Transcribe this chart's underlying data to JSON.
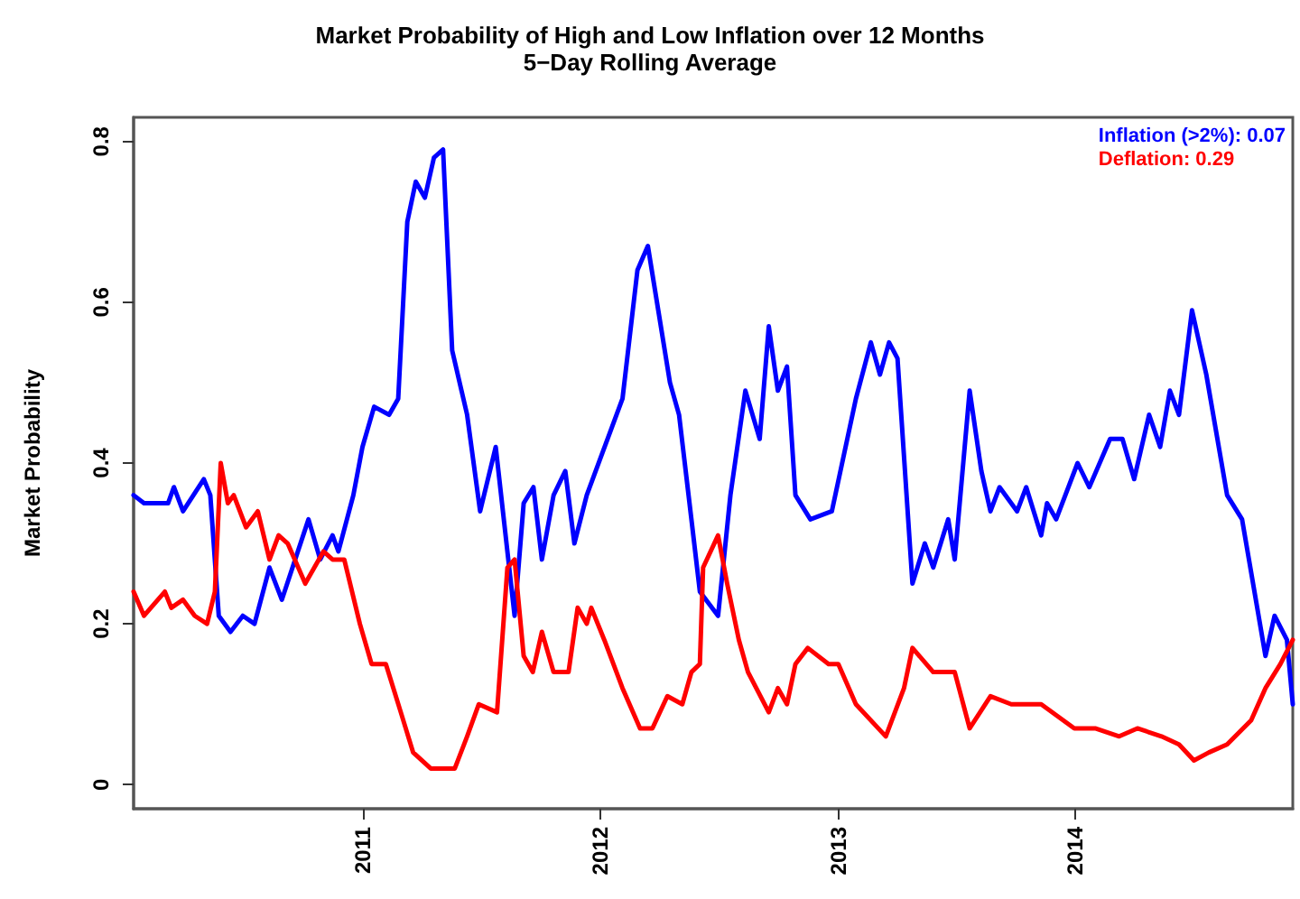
{
  "chart_data": {
    "type": "line",
    "title": "Market Probability of High and Low Inflation over 12 Months",
    "subtitle": "5−Day Rolling Average",
    "ylabel": "Market Probability",
    "xlim": [
      "2010-01-13",
      "2014-12-01"
    ],
    "xticks": [
      "2011",
      "2012",
      "2013",
      "2014"
    ],
    "ylim": [
      -0.03,
      0.83
    ],
    "yticks": [
      0,
      0.2,
      0.4,
      0.6,
      0.8
    ],
    "grid": false,
    "legend": "top right",
    "marker": "none",
    "line_style": "solid",
    "series": [
      {
        "name": "Inflation (>2%): 0.07",
        "color": "#0000ff",
        "x": [
          "2010-01-13",
          "2010-01-29",
          "2010-03-07",
          "2010-03-16",
          "2010-03-30",
          "2010-05-01",
          "2010-05-11",
          "2010-05-24",
          "2010-06-11",
          "2010-06-30",
          "2010-07-18",
          "2010-08-10",
          "2010-08-29",
          "2010-10-09",
          "2010-10-27",
          "2010-11-15",
          "2010-11-24",
          "2010-12-17",
          "2010-12-31",
          "2011-01-18",
          "2011-02-10",
          "2011-02-24",
          "2011-03-10",
          "2011-03-23",
          "2011-04-06",
          "2011-04-20",
          "2011-05-04",
          "2011-05-18",
          "2011-06-10",
          "2011-06-30",
          "2011-07-24",
          "2011-08-22",
          "2011-09-05",
          "2011-09-20",
          "2011-10-03",
          "2011-10-21",
          "2011-11-08",
          "2011-11-22",
          "2011-12-11",
          "2012-01-12",
          "2012-02-04",
          "2012-02-27",
          "2012-03-14",
          "2012-03-30",
          "2012-04-17",
          "2012-05-01",
          "2012-05-20",
          "2012-06-02",
          "2012-06-30",
          "2012-07-19",
          "2012-08-11",
          "2012-09-02",
          "2012-09-16",
          "2012-09-30",
          "2012-10-14",
          "2012-10-27",
          "2012-11-19",
          "2012-12-22",
          "2013-01-28",
          "2013-02-20",
          "2013-03-06",
          "2013-03-20",
          "2013-04-02",
          "2013-04-25",
          "2013-05-14",
          "2013-05-27",
          "2013-06-19",
          "2013-06-29",
          "2013-07-22",
          "2013-08-09",
          "2013-08-23",
          "2013-09-06",
          "2013-10-03",
          "2013-10-17",
          "2013-11-09",
          "2013-11-18",
          "2013-12-02",
          "2014-01-04",
          "2014-01-22",
          "2014-02-23",
          "2014-03-14",
          "2014-04-01",
          "2014-04-24",
          "2014-05-11",
          "2014-05-26",
          "2014-06-09",
          "2014-06-29",
          "2014-07-21",
          "2014-08-22",
          "2014-09-14",
          "2014-10-20",
          "2014-11-03",
          "2014-11-22",
          "2014-12-01"
        ],
        "values": [
          0.36,
          0.35,
          0.35,
          0.37,
          0.34,
          0.38,
          0.36,
          0.21,
          0.19,
          0.21,
          0.2,
          0.27,
          0.23,
          0.33,
          0.28,
          0.31,
          0.29,
          0.36,
          0.42,
          0.47,
          0.46,
          0.48,
          0.7,
          0.75,
          0.73,
          0.78,
          0.79,
          0.54,
          0.46,
          0.34,
          0.42,
          0.21,
          0.35,
          0.37,
          0.28,
          0.36,
          0.39,
          0.3,
          0.36,
          0.43,
          0.48,
          0.64,
          0.67,
          0.59,
          0.5,
          0.46,
          0.33,
          0.24,
          0.21,
          0.36,
          0.49,
          0.43,
          0.57,
          0.49,
          0.52,
          0.36,
          0.33,
          0.34,
          0.48,
          0.55,
          0.51,
          0.55,
          0.53,
          0.25,
          0.3,
          0.27,
          0.33,
          0.28,
          0.49,
          0.39,
          0.34,
          0.37,
          0.34,
          0.37,
          0.31,
          0.35,
          0.33,
          0.4,
          0.37,
          0.43,
          0.43,
          0.38,
          0.46,
          0.42,
          0.49,
          0.46,
          0.59,
          0.51,
          0.36,
          0.33,
          0.16,
          0.21,
          0.18,
          0.1
        ]
      },
      {
        "name": "Deflation: 0.29",
        "color": "#ff0000",
        "x": [
          "2010-01-13",
          "2010-01-29",
          "2010-03-02",
          "2010-03-12",
          "2010-03-30",
          "2010-04-17",
          "2010-05-06",
          "2010-05-18",
          "2010-05-27",
          "2010-06-07",
          "2010-06-16",
          "2010-07-05",
          "2010-07-23",
          "2010-08-10",
          "2010-08-24",
          "2010-09-07",
          "2010-10-04",
          "2010-11-01",
          "2010-11-15",
          "2010-12-03",
          "2010-12-27",
          "2011-01-14",
          "2011-02-05",
          "2011-02-28",
          "2011-03-19",
          "2011-04-15",
          "2011-05-22",
          "2011-06-10",
          "2011-06-28",
          "2011-07-26",
          "2011-08-11",
          "2011-08-22",
          "2011-09-05",
          "2011-09-19",
          "2011-10-03",
          "2011-10-21",
          "2011-11-13",
          "2011-11-27",
          "2011-12-11",
          "2011-12-18",
          "2012-01-07",
          "2012-02-04",
          "2012-03-02",
          "2012-03-21",
          "2012-04-13",
          "2012-05-06",
          "2012-05-20",
          "2012-06-02",
          "2012-06-07",
          "2012-06-30",
          "2012-07-14",
          "2012-08-01",
          "2012-08-15",
          "2012-09-16",
          "2012-09-30",
          "2012-10-14",
          "2012-10-27",
          "2012-11-15",
          "2012-12-17",
          "2013-01-01",
          "2013-01-28",
          "2013-03-15",
          "2013-04-12",
          "2013-04-25",
          "2013-05-27",
          "2013-06-29",
          "2013-07-22",
          "2013-08-23",
          "2013-09-24",
          "2013-11-09",
          "2013-12-30",
          "2014-01-31",
          "2014-03-09",
          "2014-04-06",
          "2014-05-13",
          "2014-06-09",
          "2014-07-02",
          "2014-07-25",
          "2014-08-22",
          "2014-09-28",
          "2014-10-20",
          "2014-11-12",
          "2014-12-01"
        ],
        "values": [
          0.24,
          0.21,
          0.24,
          0.22,
          0.23,
          0.21,
          0.2,
          0.24,
          0.4,
          0.35,
          0.36,
          0.32,
          0.34,
          0.28,
          0.31,
          0.3,
          0.25,
          0.29,
          0.28,
          0.28,
          0.2,
          0.15,
          0.15,
          0.09,
          0.04,
          0.02,
          0.02,
          0.06,
          0.1,
          0.09,
          0.27,
          0.28,
          0.16,
          0.14,
          0.19,
          0.14,
          0.14,
          0.22,
          0.2,
          0.22,
          0.18,
          0.12,
          0.07,
          0.07,
          0.11,
          0.1,
          0.14,
          0.15,
          0.27,
          0.31,
          0.25,
          0.18,
          0.14,
          0.09,
          0.12,
          0.1,
          0.15,
          0.17,
          0.15,
          0.15,
          0.1,
          0.06,
          0.12,
          0.17,
          0.14,
          0.14,
          0.07,
          0.11,
          0.1,
          0.1,
          0.07,
          0.07,
          0.06,
          0.07,
          0.06,
          0.05,
          0.03,
          0.04,
          0.05,
          0.08,
          0.12,
          0.15,
          0.18
        ]
      }
    ]
  }
}
